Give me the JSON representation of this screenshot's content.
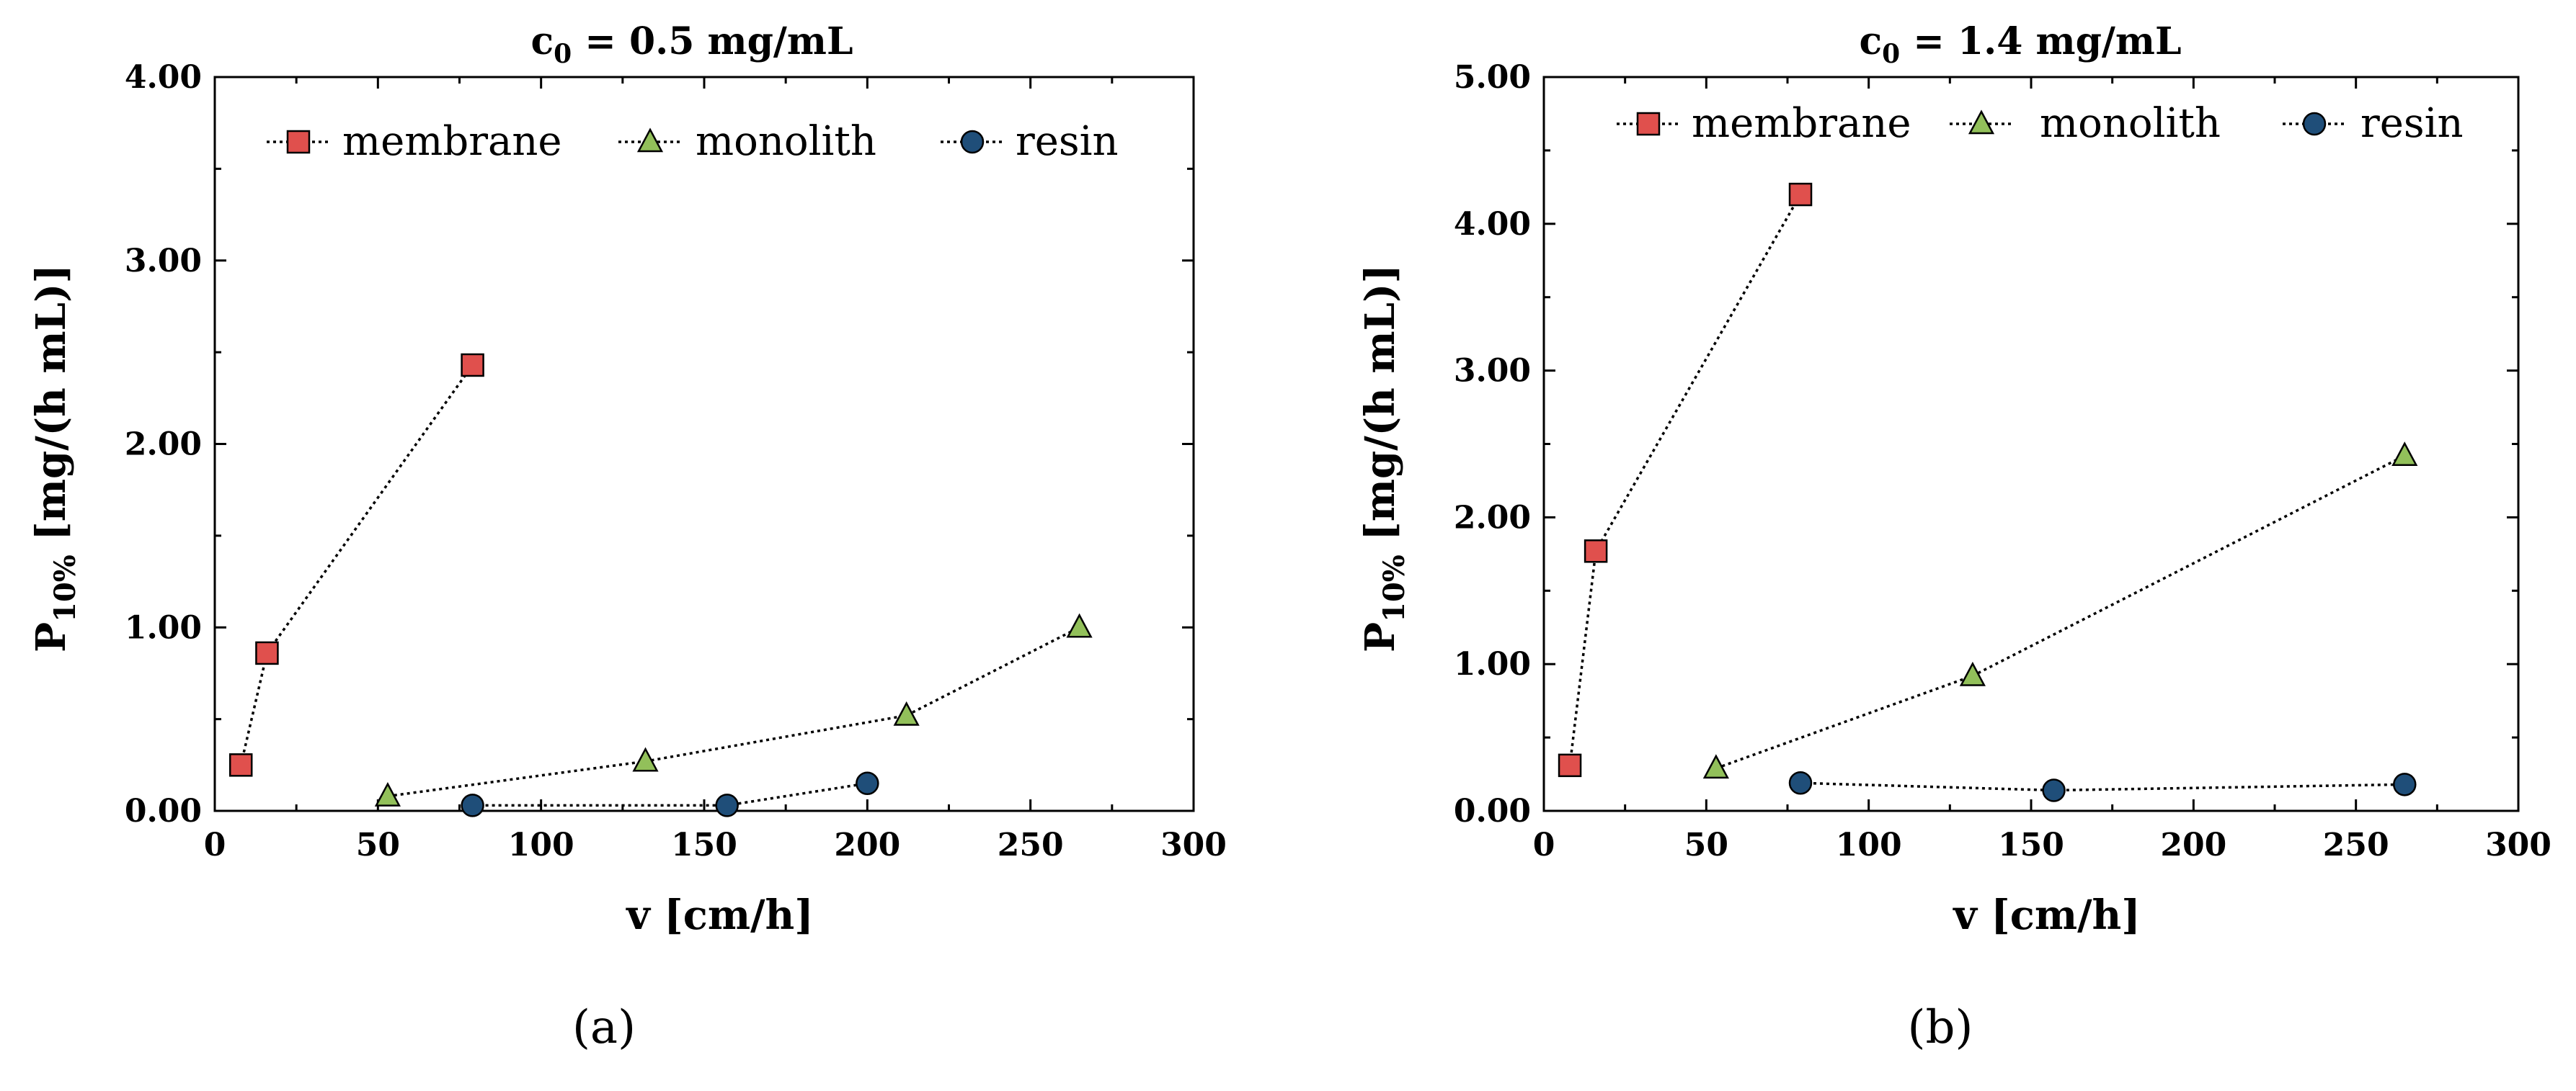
{
  "figure": {
    "panels_caption": [
      "(a)",
      "(b)"
    ]
  },
  "chart_data": [
    {
      "type": "line",
      "panel_label": "(a)",
      "title_main": "c",
      "title_sub": "0",
      "title_rest": " = 0.5 mg/mL",
      "xlabel": "v [cm/h]",
      "ylabel_main": "P",
      "ylabel_sub": "10%",
      "ylabel_rest": " [mg/(h mL)]",
      "xlim": [
        0,
        300
      ],
      "ylim": [
        0,
        4
      ],
      "xticks": [
        0,
        50,
        100,
        150,
        200,
        250,
        300
      ],
      "xtick_labels": [
        "0",
        "50",
        "100",
        "150",
        "200",
        "250",
        "300"
      ],
      "yticks": [
        0,
        1,
        2,
        3,
        4
      ],
      "ytick_labels": [
        "0.00",
        "1.00",
        "2.00",
        "3.00",
        "4.00"
      ],
      "legend_position": "top",
      "series": [
        {
          "name": "membrane",
          "marker": "square",
          "color": "#e0504d",
          "x": [
            8,
            16,
            79
          ],
          "y": [
            0.25,
            0.86,
            2.43
          ]
        },
        {
          "name": "monolith",
          "marker": "triangle",
          "color": "#92c05a",
          "x": [
            53,
            132,
            212,
            265
          ],
          "y": [
            0.08,
            0.27,
            0.52,
            1.0
          ]
        },
        {
          "name": "resin",
          "marker": "circle",
          "color": "#1f4e79",
          "x": [
            79,
            157,
            200
          ],
          "y": [
            0.03,
            0.03,
            0.15
          ]
        }
      ]
    },
    {
      "type": "line",
      "panel_label": "(b)",
      "title_main": "c",
      "title_sub": "0",
      "title_rest": " = 1.4 mg/mL",
      "xlabel": "v [cm/h]",
      "ylabel_main": "P",
      "ylabel_sub": "10%",
      "ylabel_rest": " [mg/(h mL)]",
      "xlim": [
        0,
        300
      ],
      "ylim": [
        0,
        5
      ],
      "xticks": [
        0,
        50,
        100,
        150,
        200,
        250,
        300
      ],
      "xtick_labels": [
        "0",
        "50",
        "100",
        "150",
        "200",
        "250",
        "300"
      ],
      "yticks": [
        0,
        1,
        2,
        3,
        4,
        5
      ],
      "ytick_labels": [
        "0.00",
        "1.00",
        "2.00",
        "3.00",
        "4.00",
        "5.00"
      ],
      "legend_position": "top",
      "series": [
        {
          "name": "membrane",
          "marker": "square",
          "color": "#e0504d",
          "x": [
            8,
            16,
            79
          ],
          "y": [
            0.31,
            1.77,
            4.2
          ]
        },
        {
          "name": "monolith",
          "marker": "triangle",
          "color": "#92c05a",
          "x": [
            53,
            132,
            265
          ],
          "y": [
            0.29,
            0.92,
            2.42
          ]
        },
        {
          "name": "resin",
          "marker": "circle",
          "color": "#1f4e79",
          "x": [
            79,
            157,
            265
          ],
          "y": [
            0.19,
            0.14,
            0.18
          ]
        }
      ]
    }
  ]
}
